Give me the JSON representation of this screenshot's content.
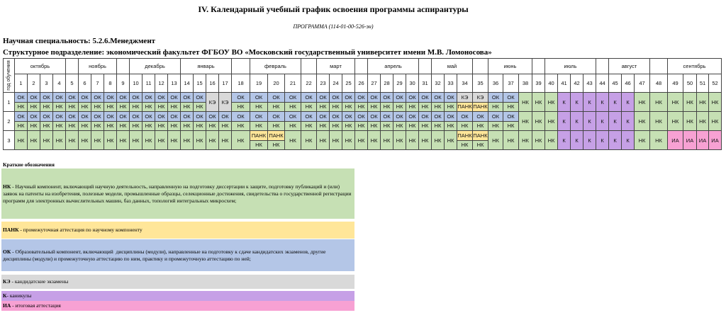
{
  "header": {
    "title": "IV. Календарный учебный график освоения программы аспирантуры",
    "subtitle": "ПРОГРАММА (114-01-00-526-эн)",
    "specialty": "Научная специальность: 5.2.6.Менеджмент",
    "department": "Структурное подразделение: экономический факультет  ФГБОУ ВО «Московский государственный университет имени М.В. Ломоносова»"
  },
  "schedule": {
    "year_header": "год обучения",
    "months": [
      "октябрь",
      null,
      "ноябрь",
      null,
      "декабрь",
      "январь",
      null,
      "февраль",
      null,
      "март",
      null,
      "апрель",
      null,
      "май",
      null,
      "июнь",
      null,
      "июль",
      null,
      "август",
      null,
      "сентябрь"
    ],
    "weeks": [
      1,
      2,
      3,
      4,
      5,
      6,
      7,
      8,
      9,
      10,
      11,
      12,
      13,
      14,
      15,
      16,
      17,
      18,
      19,
      20,
      21,
      22,
      23,
      24,
      25,
      26,
      27,
      28,
      29,
      30,
      31,
      32,
      33,
      34,
      35,
      36,
      37,
      38,
      39,
      40,
      41,
      42,
      43,
      44,
      45,
      46,
      47,
      48,
      49,
      50,
      51,
      52
    ],
    "colors": {
      "НК": "#c6e0b4",
      "ПАНК": "#ffe699",
      "ОК": "#b4c6e7",
      "КЭ": "#d9d9d9",
      "К": "#c6a0e6",
      "ИА": "#f7a1d3"
    },
    "years": [
      {
        "label": "1",
        "cells": [
          [
            "ОК",
            "НК"
          ],
          [
            "ОК",
            "НК"
          ],
          [
            "ОК",
            "НК"
          ],
          [
            "ОК",
            "НК"
          ],
          [
            "ОК",
            "НК"
          ],
          [
            "ОК",
            "НК"
          ],
          [
            "ОК",
            "НК"
          ],
          [
            "ОК",
            "НК"
          ],
          [
            "ОК",
            "НК"
          ],
          [
            "ОК",
            "НК"
          ],
          [
            "ОК",
            "НК"
          ],
          [
            "ОК",
            "НК"
          ],
          [
            "ОК",
            "НК"
          ],
          [
            "ОК",
            "НК"
          ],
          [
            "ОК",
            "НК"
          ],
          "КЭ",
          "КЭ",
          [
            "ОК",
            "НК"
          ],
          [
            "ОК",
            "НК"
          ],
          [
            "ОК",
            "НК"
          ],
          [
            "ОК",
            "НК"
          ],
          [
            "ОК",
            "НК"
          ],
          [
            "ОК",
            "НК"
          ],
          [
            "ОК",
            "НК"
          ],
          [
            "ОК",
            "НК"
          ],
          [
            "ОК",
            "НК"
          ],
          [
            "ОК",
            "НК"
          ],
          [
            "ОК",
            "НК"
          ],
          [
            "ОК",
            "НК"
          ],
          [
            "ОК",
            "НК"
          ],
          [
            "ОК",
            "НК"
          ],
          [
            "ОК",
            "НК"
          ],
          [
            "ОК",
            "НК"
          ],
          [
            "КЭ",
            "ПАНК"
          ],
          [
            "КЭ",
            "ПАНК"
          ],
          [
            "ОК",
            "НК"
          ],
          [
            "ОК",
            "НК"
          ],
          "НК",
          "НК",
          "НК",
          "К",
          "К",
          "К",
          "К",
          "К",
          "К",
          "НК",
          "НК",
          "НК",
          "НК",
          "НК",
          "НК"
        ]
      },
      {
        "label": "2",
        "cells": [
          [
            "ОК",
            "НК"
          ],
          [
            "ОК",
            "НК"
          ],
          [
            "ОК",
            "НК"
          ],
          [
            "ОК",
            "НК"
          ],
          [
            "ОК",
            "НК"
          ],
          [
            "ОК",
            "НК"
          ],
          [
            "ОК",
            "НК"
          ],
          [
            "ОК",
            "НК"
          ],
          [
            "ОК",
            "НК"
          ],
          [
            "ОК",
            "НК"
          ],
          [
            "ОК",
            "НК"
          ],
          [
            "ОК",
            "НК"
          ],
          [
            "ОК",
            "НК"
          ],
          [
            "ОК",
            "НК"
          ],
          [
            "ОК",
            "НК"
          ],
          [
            "ОК",
            "НК"
          ],
          [
            "ОК",
            "НК"
          ],
          [
            "ОК",
            "НК"
          ],
          [
            "ОК",
            "НК"
          ],
          [
            "ОК",
            "НК"
          ],
          [
            "ОК",
            "НК"
          ],
          [
            "ОК",
            "НК"
          ],
          [
            "ОК",
            "НК"
          ],
          [
            "ОК",
            "НК"
          ],
          [
            "ОК",
            "НК"
          ],
          [
            "ОК",
            "НК"
          ],
          [
            "ОК",
            "НК"
          ],
          [
            "ОК",
            "НК"
          ],
          [
            "ОК",
            "НК"
          ],
          [
            "ОК",
            "НК"
          ],
          [
            "ОК",
            "НК"
          ],
          [
            "ОК",
            "НК"
          ],
          [
            "ОК",
            "НК"
          ],
          [
            "ОК",
            "НК"
          ],
          [
            "ОК",
            "НК"
          ],
          [
            "ОК",
            "НК"
          ],
          [
            "ОК",
            "НК"
          ],
          "НК",
          "НК",
          "НК",
          "К",
          "К",
          "К",
          "К",
          "К",
          "К",
          "НК",
          "НК",
          "НК",
          "НК",
          "НК",
          "НК"
        ]
      },
      {
        "label": "3",
        "cells": [
          "НК",
          "НК",
          "НК",
          "НК",
          "НК",
          "НК",
          "НК",
          "НК",
          "НК",
          "НК",
          "НК",
          "НК",
          "НК",
          "НК",
          "НК",
          "НК",
          "НК",
          "НК",
          [
            "ПАНК",
            "НК"
          ],
          [
            "ПАНК",
            "НК"
          ],
          "НК",
          "НК",
          "НК",
          "НК",
          "НК",
          "НК",
          "НК",
          "НК",
          "НК",
          "НК",
          "НК",
          "НК",
          "НК",
          [
            "ПАНК",
            "НК"
          ],
          [
            "ПАНК",
            "НК"
          ],
          "НК",
          "НК",
          "НК",
          "НК",
          "НК",
          "К",
          "К",
          "К",
          "К",
          "К",
          "К",
          "НК",
          "НК",
          "ИА",
          "ИА",
          "ИА",
          "ИА"
        ]
      }
    ]
  },
  "legend": {
    "title": "Краткие обозначения",
    "items": [
      {
        "code": "НК",
        "text": " - Научный компонент, включающий научную деятельность, направленную на подготовку диссертации к защите, подготовку публикаций и (или) заявок на патенты на изобретения, полезные модели, промышленные образцы, селекционные достижения, свидетельства о государственной регистрации программ для электронных вычислительных машин, баз данных, топологий интегральных микросхем;"
      },
      {
        "code": "ПАНК",
        "text": " - промежуточная аттестация по научному компоненту"
      },
      {
        "code": "ОК",
        "text": " - Образовательный компонент, включающий  дисциплины (модули), направленные на подготовку к сдаче кандидатских экзаменов, другие дисциплины (модули) и промежуточную аттестацию по ним, практику и промежуточную аттестацию по ней;"
      },
      {
        "code": "КЭ",
        "text": " - кандидатские экзамены"
      },
      {
        "code": "К",
        "text": "- каникулы"
      },
      {
        "code": "ИА",
        "text": " - итоговая аттестация"
      }
    ]
  }
}
